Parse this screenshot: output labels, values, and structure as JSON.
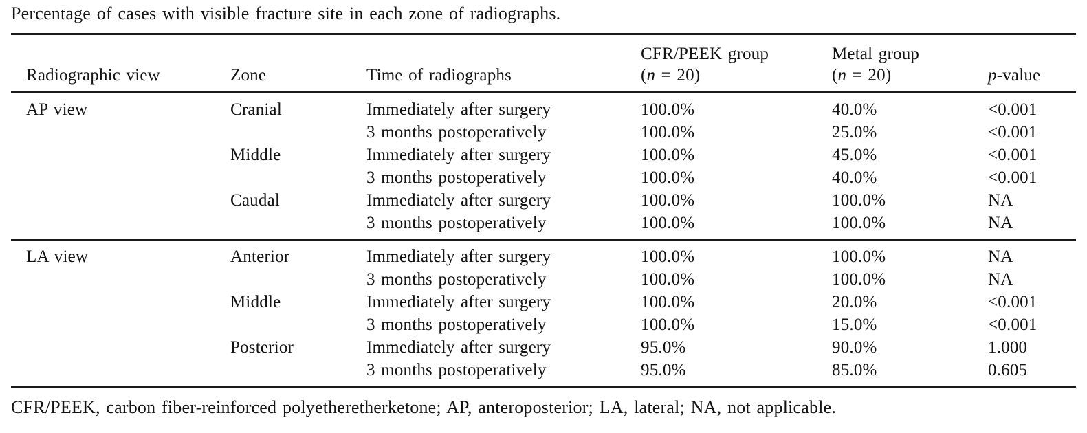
{
  "caption": "Percentage of cases with visible fracture site in each zone of radiographs.",
  "header": {
    "col_view": "Radiographic view",
    "col_zone": "Zone",
    "col_time": "Time of radiographs",
    "col_cfr_group": "CFR/PEEK group",
    "col_metal_group": "Metal group",
    "n_open": "(",
    "n_italic": "n",
    "n_rest": " = 20)",
    "p_italic": "p",
    "p_rest": "-value"
  },
  "chart_data": {
    "type": "table",
    "title": "Percentage of cases with visible fracture site in each zone of radiographs.",
    "columns": [
      "Radiographic view",
      "Zone",
      "Time of radiographs",
      "CFR/PEEK group (n = 20)",
      "Metal group (n = 20)",
      "p-value"
    ]
  },
  "rows": [
    {
      "view": "AP view",
      "zone": "Cranial",
      "time": "Immediately after surgery",
      "cfr": "100.0%",
      "metal": "40.0%",
      "p": "<0.001"
    },
    {
      "view": "",
      "zone": "",
      "time": "3 months postoperatively",
      "cfr": "100.0%",
      "metal": "25.0%",
      "p": "<0.001"
    },
    {
      "view": "",
      "zone": "Middle",
      "time": "Immediately after surgery",
      "cfr": "100.0%",
      "metal": "45.0%",
      "p": "<0.001"
    },
    {
      "view": "",
      "zone": "",
      "time": "3 months postoperatively",
      "cfr": "100.0%",
      "metal": "40.0%",
      "p": "<0.001"
    },
    {
      "view": "",
      "zone": "Caudal",
      "time": "Immediately after surgery",
      "cfr": "100.0%",
      "metal": "100.0%",
      "p": "NA"
    },
    {
      "view": "",
      "zone": "",
      "time": "3 months postoperatively",
      "cfr": "100.0%",
      "metal": "100.0%",
      "p": "NA"
    },
    {
      "view": "LA view",
      "zone": "Anterior",
      "time": "Immediately after surgery",
      "cfr": "100.0%",
      "metal": "100.0%",
      "p": "NA"
    },
    {
      "view": "",
      "zone": "",
      "time": "3 months postoperatively",
      "cfr": "100.0%",
      "metal": "100.0%",
      "p": "NA"
    },
    {
      "view": "",
      "zone": "Middle",
      "time": "Immediately after surgery",
      "cfr": "100.0%",
      "metal": "20.0%",
      "p": "<0.001"
    },
    {
      "view": "",
      "zone": "",
      "time": "3 months postoperatively",
      "cfr": "100.0%",
      "metal": "15.0%",
      "p": "<0.001"
    },
    {
      "view": "",
      "zone": "Posterior",
      "time": "Immediately after surgery",
      "cfr": "95.0%",
      "metal": "90.0%",
      "p": "1.000"
    },
    {
      "view": "",
      "zone": "",
      "time": "3 months postoperatively",
      "cfr": "95.0%",
      "metal": "85.0%",
      "p": "0.605"
    }
  ],
  "footnote": "CFR/PEEK, carbon fiber-reinforced polyetheretherketone; AP, anteroposterior; LA, lateral; NA, not applicable."
}
